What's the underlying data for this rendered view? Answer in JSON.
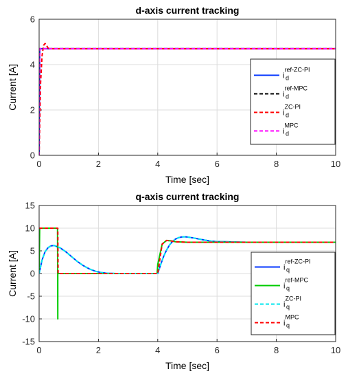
{
  "chart_data": [
    {
      "type": "line",
      "title": "d-axis current tracking",
      "xlabel": "Time [sec]",
      "ylabel": "Current [A]",
      "xlim": [
        0,
        10
      ],
      "ylim": [
        0,
        6
      ],
      "xticks": [
        "0",
        "2",
        "4",
        "6",
        "8",
        "10"
      ],
      "yticks": [
        "0",
        "2",
        "4",
        "6"
      ],
      "legend_position": "right",
      "grid": true,
      "series": [
        {
          "key": "ref-ZC-PI",
          "sub": "d",
          "color": "#0033ff",
          "dash": "solid",
          "x": [
            0,
            0.02,
            10
          ],
          "y": [
            0,
            4.7,
            4.7
          ]
        },
        {
          "key": "ref-MPC",
          "sub": "d",
          "color": "#000000",
          "dash": "dashed",
          "x": [
            0,
            0.02,
            10
          ],
          "y": [
            0,
            4.7,
            4.7
          ]
        },
        {
          "key": "ZC-PI",
          "sub": "d",
          "color": "#ff0000",
          "dash": "dashed",
          "x": [
            0,
            0.05,
            0.1,
            0.15,
            0.2,
            0.25,
            0.3,
            0.4,
            10
          ],
          "y": [
            0,
            3.2,
            4.4,
            4.85,
            4.93,
            4.85,
            4.73,
            4.7,
            4.7
          ]
        },
        {
          "key": "MPC",
          "sub": "d",
          "color": "#ff00ff",
          "dash": "dashed",
          "x": [
            0,
            0.01,
            0.03,
            10
          ],
          "y": [
            0,
            3.5,
            4.7,
            4.7
          ]
        }
      ]
    },
    {
      "type": "line",
      "title": "q-axis current tracking",
      "xlabel": "Time [sec]",
      "ylabel": "Current [A]",
      "xlim": [
        0,
        10
      ],
      "ylim": [
        -15,
        15
      ],
      "xticks": [
        "0",
        "2",
        "4",
        "6",
        "8",
        "10"
      ],
      "yticks": [
        "-15",
        "-10",
        "-5",
        "0",
        "5",
        "10",
        "15"
      ],
      "legend_position": "right",
      "grid": true,
      "series": [
        {
          "key": "ref-ZC-PI",
          "sub": "q",
          "color": "#0033ff",
          "dash": "solid",
          "x": [
            0,
            0.1,
            0.2,
            0.3,
            0.4,
            0.5,
            0.7,
            0.9,
            1.1,
            1.3,
            1.5,
            1.7,
            1.9,
            2.1,
            2.3,
            2.6,
            3.0,
            3.5,
            4.0,
            4.1,
            4.2,
            4.3,
            4.4,
            4.5,
            4.6,
            4.7,
            4.8,
            4.9,
            5.0,
            5.2,
            5.4,
            5.6,
            5.8,
            6.0,
            6.3,
            6.6,
            7.0,
            8.0,
            9.0,
            10.0
          ],
          "y": [
            0,
            3.0,
            4.8,
            5.7,
            6.1,
            6.2,
            5.7,
            4.8,
            3.7,
            2.6,
            1.7,
            1.0,
            0.5,
            0.2,
            0.05,
            0,
            0,
            0,
            0,
            2.0,
            3.8,
            5.2,
            6.3,
            7.1,
            7.6,
            7.9,
            8.05,
            8.1,
            8.05,
            7.85,
            7.6,
            7.35,
            7.15,
            7.05,
            7.0,
            6.95,
            6.9,
            6.9,
            6.9,
            6.9
          ]
        },
        {
          "key": "ref-MPC",
          "sub": "q",
          "color": "#00cc00",
          "dash": "solid",
          "x": [
            0,
            0.02,
            0.62,
            0.63,
            0.63,
            0.66,
            3.98,
            4.0,
            4.15,
            4.3,
            4.45,
            4.6,
            5.0,
            10.0
          ],
          "y": [
            0,
            10,
            10,
            -10,
            0,
            0,
            0,
            2.0,
            6.5,
            7.3,
            7.2,
            7.0,
            6.9,
            6.9
          ]
        },
        {
          "key": "ZC-PI",
          "sub": "q",
          "color": "#00e5ee",
          "dash": "dashed",
          "x": [
            0,
            0.1,
            0.2,
            0.3,
            0.4,
            0.5,
            0.7,
            0.9,
            1.1,
            1.3,
            1.5,
            1.7,
            1.9,
            2.1,
            2.3,
            2.6,
            3.0,
            3.5,
            4.0,
            4.1,
            4.2,
            4.3,
            4.4,
            4.5,
            4.6,
            4.7,
            4.8,
            4.9,
            5.0,
            5.2,
            5.4,
            5.6,
            5.8,
            6.0,
            6.3,
            6.6,
            7.0,
            8.0,
            9.0,
            10.0
          ],
          "y": [
            0,
            3.0,
            4.8,
            5.7,
            6.1,
            6.2,
            5.7,
            4.8,
            3.7,
            2.6,
            1.7,
            1.0,
            0.5,
            0.2,
            0.05,
            0,
            0,
            0,
            0,
            2.0,
            3.8,
            5.2,
            6.3,
            7.1,
            7.6,
            7.9,
            8.05,
            8.1,
            8.05,
            7.85,
            7.6,
            7.35,
            7.15,
            7.05,
            7.0,
            6.95,
            6.9,
            6.9,
            6.9,
            6.9
          ]
        },
        {
          "key": "MPC",
          "sub": "q",
          "color": "#ff0000",
          "dash": "dashed",
          "x": [
            0,
            0.02,
            0.63,
            0.64,
            3.98,
            4.0,
            4.15,
            4.3,
            4.45,
            4.6,
            5.0,
            10.0
          ],
          "y": [
            10,
            10,
            10,
            0,
            0,
            0,
            6.5,
            7.3,
            7.2,
            7.0,
            6.9,
            6.9
          ]
        }
      ]
    }
  ]
}
